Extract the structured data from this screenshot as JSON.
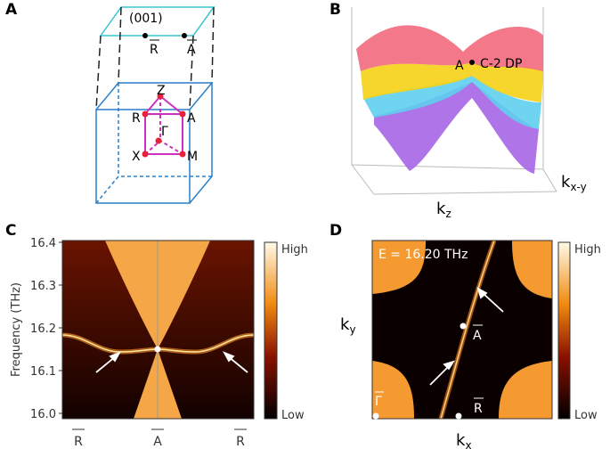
{
  "panel_a": {
    "label": "A",
    "plane": "(001)",
    "r_bar": "R",
    "a_bar": "A",
    "z": "Z",
    "r": "R",
    "a": "A",
    "gamma": "Γ",
    "x": "X",
    "m": "M"
  },
  "panel_b": {
    "label": "B",
    "point": "A",
    "point_name": "C-2 DP",
    "kz": {
      "base": "k",
      "sub": "z"
    },
    "kxy": {
      "base": "k",
      "sub": "x-y"
    }
  },
  "panel_c": {
    "label": "C",
    "y_axis_label": "Frequency (THz)",
    "yticks": [
      "16.4",
      "16.3",
      "16.2",
      "16.1",
      "16.0"
    ],
    "colorbar": {
      "high": "High",
      "low": "Low"
    },
    "x_labels": [
      "R",
      "A",
      "R"
    ]
  },
  "panel_d": {
    "label": "D",
    "energy": "E = 16.20 THz",
    "a_bar": "A",
    "gamma_bar": "Γ",
    "r_bar": "R",
    "ky": {
      "base": "k",
      "sub": "y"
    },
    "kx": {
      "base": "k",
      "sub": "x"
    },
    "colorbar": {
      "high": "High",
      "low": "Low"
    }
  }
}
